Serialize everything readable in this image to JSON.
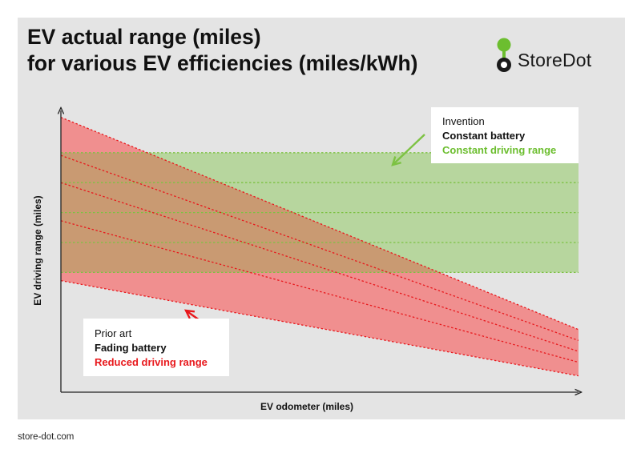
{
  "title_lines": [
    "EV actual range (miles)",
    "for various EV efficiencies (miles/kWh)"
  ],
  "brand": {
    "name": "StoreDot",
    "accent": "#6cbe2f"
  },
  "footer": "store-dot.com",
  "callouts": {
    "invention": {
      "line1": "Invention",
      "line2": "Constant battery",
      "line3": "Constant driving range"
    },
    "prior": {
      "line1": "Prior art",
      "line2": "Fading battery",
      "line3": "Reduced driving range"
    }
  },
  "colors": {
    "green_band": "#b7d69e",
    "green_line": "#7dc243",
    "red_band": "#f08f8f",
    "red_line": "#e8181c",
    "overlap": "#c99a72"
  },
  "chart_data": {
    "type": "line",
    "xlabel": "EV odometer (miles)",
    "ylabel": "EV driving range (miles)",
    "title": "EV actual range (miles) for various EV efficiencies (miles/kWh)",
    "xlim": [
      0,
      100
    ],
    "ylim": [
      0,
      100
    ],
    "x": [
      0,
      100
    ],
    "series": [
      {
        "name": "Constant driving range 1",
        "group": "invention",
        "values": [
          88,
          88
        ]
      },
      {
        "name": "Constant driving range 2",
        "group": "invention",
        "values": [
          77,
          77
        ]
      },
      {
        "name": "Constant driving range 3",
        "group": "invention",
        "values": [
          66,
          66
        ]
      },
      {
        "name": "Constant driving range 4",
        "group": "invention",
        "values": [
          55,
          55
        ]
      },
      {
        "name": "Constant driving range 5",
        "group": "invention",
        "values": [
          44,
          44
        ]
      },
      {
        "name": "Reduced driving range 1",
        "group": "prior",
        "values": [
          101,
          23
        ]
      },
      {
        "name": "Reduced driving range 2",
        "group": "prior",
        "values": [
          87,
          19
        ]
      },
      {
        "name": "Reduced driving range 3",
        "group": "prior",
        "values": [
          77,
          15
        ]
      },
      {
        "name": "Reduced driving range 4",
        "group": "prior",
        "values": [
          63,
          11
        ]
      },
      {
        "name": "Reduced driving range 5",
        "group": "prior",
        "values": [
          41,
          6
        ]
      }
    ]
  }
}
